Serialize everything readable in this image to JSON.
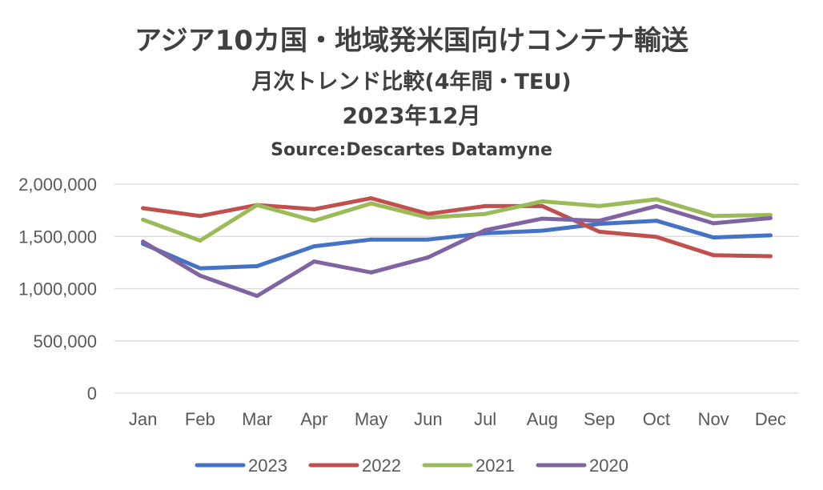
{
  "chart_data": {
    "type": "line",
    "title": "アジア10カ国・地域発米国向けコンテナ輸送",
    "subtitle": "月次トレンド比較(4年間・TEU)",
    "subtitle2": "2023年12月",
    "source": "Source:Descartes Datamyne",
    "categories": [
      "Jan",
      "Feb",
      "Mar",
      "Apr",
      "May",
      "Jun",
      "Jul",
      "Aug",
      "Sep",
      "Oct",
      "Nov",
      "Dec"
    ],
    "ylim": [
      0,
      2000000
    ],
    "yticks": [
      0,
      500000,
      1000000,
      1500000,
      2000000
    ],
    "ytick_labels": [
      "0",
      "500,000",
      "1,000,000",
      "1,500,000",
      "2,000,000"
    ],
    "grid": true,
    "legend_position": "bottom",
    "series": [
      {
        "name": "2023",
        "color": "#4472C4",
        "values": [
          1430000,
          1195000,
          1215000,
          1405000,
          1470000,
          1470000,
          1530000,
          1555000,
          1620000,
          1650000,
          1490000,
          1510000
        ]
      },
      {
        "name": "2022",
        "color": "#C0504D",
        "values": [
          1770000,
          1695000,
          1800000,
          1760000,
          1865000,
          1715000,
          1790000,
          1790000,
          1545000,
          1495000,
          1320000,
          1310000
        ]
      },
      {
        "name": "2021",
        "color": "#9BBB59",
        "values": [
          1660000,
          1460000,
          1800000,
          1650000,
          1815000,
          1680000,
          1715000,
          1835000,
          1790000,
          1855000,
          1695000,
          1705000
        ]
      },
      {
        "name": "2020",
        "color": "#8064A2",
        "values": [
          1450000,
          1125000,
          930000,
          1260000,
          1155000,
          1300000,
          1560000,
          1670000,
          1650000,
          1790000,
          1625000,
          1675000
        ]
      }
    ]
  }
}
